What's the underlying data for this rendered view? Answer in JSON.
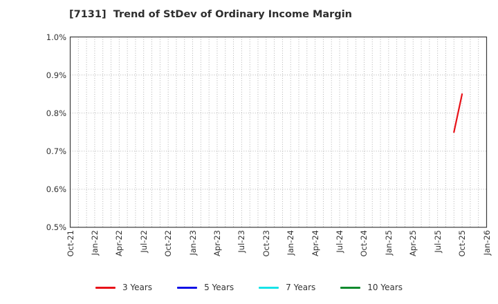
{
  "header": {
    "title": "[7131]  Trend of StDev of Ordinary Income Margin"
  },
  "chart_data": {
    "type": "line",
    "title": "[7131]  Trend of StDev of Ordinary Income Margin",
    "xlabel": "",
    "ylabel": "",
    "ylim": [
      0.5,
      1.0
    ],
    "y_ticks": [
      {
        "value": 0.5,
        "label": "0.5%"
      },
      {
        "value": 0.6,
        "label": "0.6%"
      },
      {
        "value": 0.7,
        "label": "0.7%"
      },
      {
        "value": 0.8,
        "label": "0.8%"
      },
      {
        "value": 0.9,
        "label": "0.9%"
      },
      {
        "value": 1.0,
        "label": "1.0%"
      }
    ],
    "x_axis": {
      "months_total": 51,
      "tick_every_months": 3,
      "tick_labels": [
        "Oct-21",
        "Jan-22",
        "Apr-22",
        "Jul-22",
        "Oct-22",
        "Jan-23",
        "Apr-23",
        "Jul-23",
        "Oct-23",
        "Jan-24",
        "Apr-24",
        "Jul-24",
        "Oct-24",
        "Jan-25",
        "Apr-25",
        "Jul-25",
        "Oct-25",
        "Jan-26"
      ]
    },
    "grid": {
      "style": "dotted",
      "vertical": "monthly",
      "horizontal": "every 0.1%",
      "color": "#a8a8a8"
    },
    "series": [
      {
        "name": "3 Years",
        "color": "#e81219",
        "points": [
          {
            "month_index": 47,
            "x_label": "Sep-25",
            "y": 0.75
          },
          {
            "month_index": 48,
            "x_label": "Oct-25",
            "y": 0.85
          }
        ]
      },
      {
        "name": "5 Years",
        "color": "#1111e6",
        "points": []
      },
      {
        "name": "7 Years",
        "color": "#17e3e8",
        "points": []
      },
      {
        "name": "10 Years",
        "color": "#0f8a2d",
        "points": []
      }
    ],
    "legend_position": "bottom-center"
  },
  "colors": {
    "background": "#ffffff",
    "plot_border": "#3a3a3a",
    "tick_text": "#333333",
    "title_text": "#2e2e2e"
  }
}
